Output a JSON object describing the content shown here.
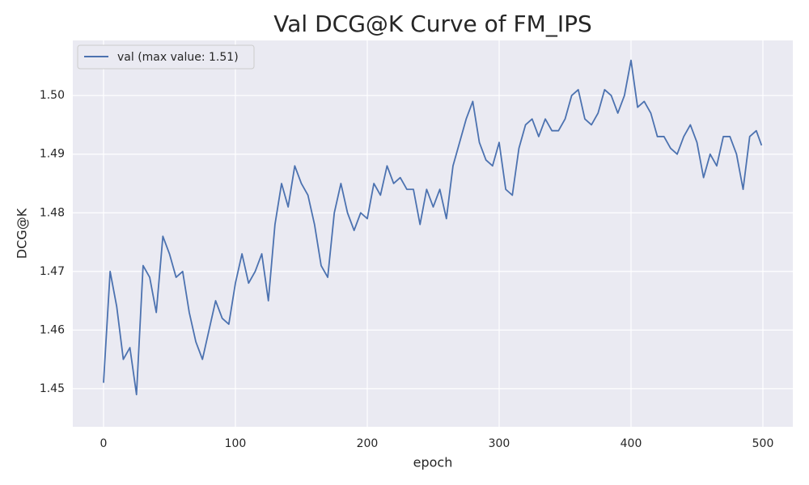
{
  "chart_data": {
    "type": "line",
    "title": "Val DCG@K Curve of FM_IPS",
    "xlabel": "epoch",
    "ylabel": "DCG@K",
    "x": [
      0,
      5,
      10,
      15,
      20,
      25,
      30,
      35,
      40,
      45,
      50,
      55,
      60,
      65,
      70,
      75,
      80,
      85,
      90,
      95,
      100,
      105,
      110,
      115,
      120,
      125,
      130,
      135,
      140,
      145,
      150,
      155,
      160,
      165,
      170,
      175,
      180,
      185,
      190,
      195,
      200,
      205,
      210,
      215,
      220,
      225,
      230,
      235,
      240,
      245,
      250,
      255,
      260,
      265,
      270,
      275,
      280,
      285,
      290,
      295,
      300,
      305,
      310,
      315,
      320,
      325,
      330,
      335,
      340,
      345,
      350,
      355,
      360,
      365,
      370,
      375,
      380,
      385,
      390,
      395,
      400,
      405,
      410,
      415,
      420,
      425,
      430,
      435,
      440,
      445,
      450,
      455,
      460,
      465,
      470,
      475,
      480,
      485,
      490,
      495,
      499
    ],
    "series": [
      {
        "name": "val (max value: 1.51)",
        "color": "#4c72b0",
        "values": [
          1.451,
          1.47,
          1.464,
          1.455,
          1.457,
          1.449,
          1.471,
          1.469,
          1.463,
          1.476,
          1.473,
          1.469,
          1.47,
          1.463,
          1.458,
          1.455,
          1.46,
          1.465,
          1.462,
          1.461,
          1.468,
          1.473,
          1.468,
          1.47,
          1.473,
          1.465,
          1.478,
          1.485,
          1.481,
          1.488,
          1.485,
          1.483,
          1.478,
          1.471,
          1.469,
          1.48,
          1.485,
          1.48,
          1.477,
          1.48,
          1.479,
          1.485,
          1.483,
          1.488,
          1.485,
          1.486,
          1.484,
          1.484,
          1.478,
          1.484,
          1.481,
          1.484,
          1.479,
          1.488,
          1.492,
          1.496,
          1.499,
          1.492,
          1.489,
          1.488,
          1.492,
          1.484,
          1.483,
          1.491,
          1.495,
          1.496,
          1.493,
          1.496,
          1.494,
          1.494,
          1.496,
          1.5,
          1.501,
          1.496,
          1.495,
          1.497,
          1.501,
          1.5,
          1.497,
          1.5,
          1.506,
          1.498,
          1.499,
          1.497,
          1.493,
          1.493,
          1.491,
          1.49,
          1.493,
          1.495,
          1.492,
          1.486,
          1.49,
          1.488,
          1.493,
          1.493,
          1.49,
          1.484,
          1.493,
          1.494,
          1.4915
        ]
      }
    ],
    "xlim": [
      -23.3,
      522.7
    ],
    "xticks": [
      0,
      100,
      200,
      300,
      400,
      500
    ],
    "ylim": [
      1.4435,
      1.5094
    ],
    "yticks": [
      1.45,
      1.46,
      1.47,
      1.48,
      1.49,
      {
        "value": 1.5,
        "label": "1.50"
      }
    ],
    "grid": true,
    "legend": "upper left"
  }
}
